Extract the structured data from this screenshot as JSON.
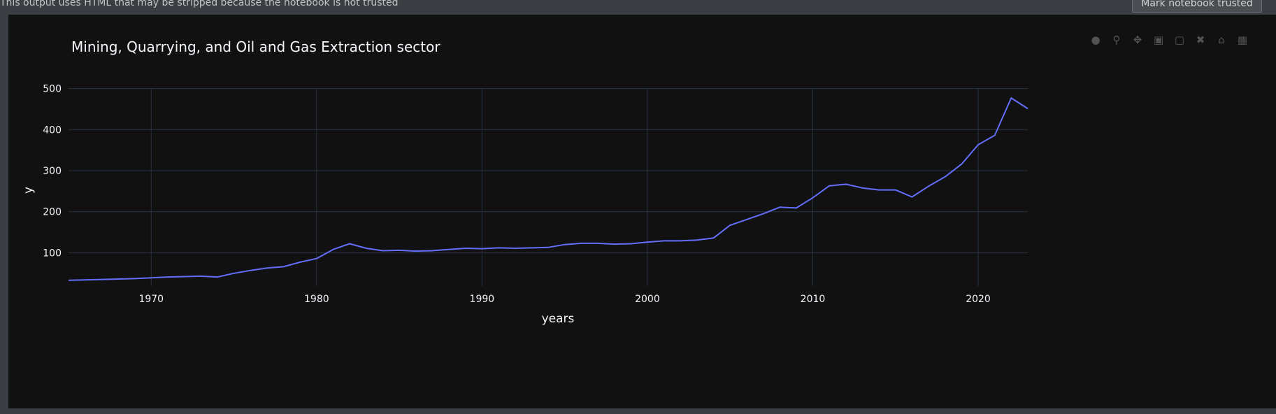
{
  "notice": {
    "text": "This output uses HTML that may be stripped because the notebook is not trusted",
    "button_label": "Mark notebook trusted"
  },
  "modebar": {
    "icons": [
      "camera-icon",
      "zoom-icon",
      "pan-icon",
      "zoom-in-icon",
      "zoom-out-icon",
      "autoscale-icon",
      "home-icon",
      "plotly-logo-icon"
    ]
  },
  "colors": {
    "line": "#636efa",
    "plot_bg": "#111111",
    "grid": "#283442",
    "text": "#f2f5fa"
  },
  "chart_data": {
    "type": "line",
    "title": "Mining, Quarrying, and Oil and Gas Extraction sector",
    "xlabel": "years",
    "ylabel": "y",
    "xlim": [
      1965,
      2023
    ],
    "ylim": [
      19,
      501
    ],
    "xticks": [
      1970,
      1980,
      1990,
      2000,
      2010,
      2020
    ],
    "yticks": [
      100,
      200,
      300,
      400,
      500
    ],
    "grid": true,
    "series": [
      {
        "x": [
          1965,
          1966,
          1967,
          1968,
          1969,
          1970,
          1971,
          1972,
          1973,
          1974,
          1975,
          1976,
          1977,
          1978,
          1979,
          1980,
          1981,
          1982,
          1983,
          1984,
          1985,
          1986,
          1987,
          1988,
          1989,
          1990,
          1991,
          1992,
          1993,
          1994,
          1995,
          1996,
          1997,
          1998,
          1999,
          2000,
          2001,
          2002,
          2003,
          2004,
          2005,
          2006,
          2007,
          2008,
          2009,
          2010,
          2011,
          2012,
          2013,
          2014,
          2015,
          2016,
          2017,
          2018,
          2019,
          2020,
          2021,
          2022,
          2023
        ],
        "y": [
          33,
          34,
          35,
          36,
          37,
          39,
          41,
          42,
          43,
          41,
          50,
          57,
          63,
          66,
          77,
          86,
          108,
          122,
          111,
          105,
          106,
          104,
          105,
          108,
          111,
          110,
          112,
          111,
          112,
          113,
          120,
          123,
          123,
          121,
          122,
          126,
          129,
          129,
          131,
          136,
          167,
          181,
          195,
          211,
          209,
          234,
          263,
          267,
          258,
          253,
          253,
          236,
          262,
          285,
          316,
          363,
          386,
          477,
          451
        ]
      }
    ]
  }
}
